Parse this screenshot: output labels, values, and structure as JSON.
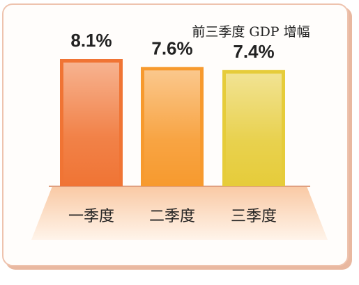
{
  "chart_data": {
    "type": "bar",
    "title": "前三季度 GDP 增幅",
    "categories": [
      "一季度",
      "二季度",
      "三季度"
    ],
    "values": [
      8.1,
      7.6,
      7.4
    ],
    "value_labels": [
      "8.1%",
      "7.6%",
      "7.4%"
    ],
    "colors": [
      "#f07434",
      "#f79a2e",
      "#e6cc3a"
    ]
  }
}
